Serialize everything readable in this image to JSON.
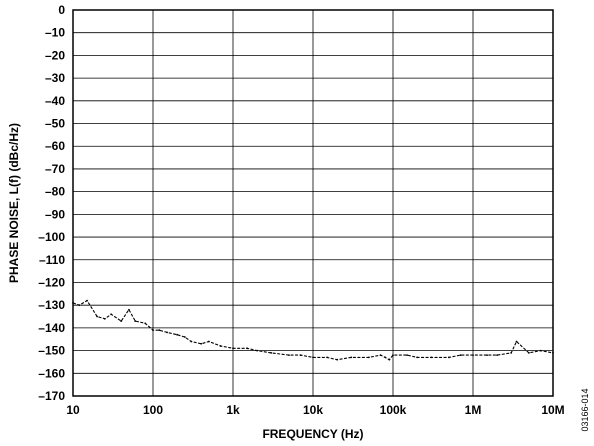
{
  "chart_data": {
    "type": "line",
    "xlabel": "FREQUENCY (Hz)",
    "ylabel": "PHASE NOISE, L(f) (dBc/Hz)",
    "xscale": "log",
    "xlim": [
      10,
      10000000
    ],
    "ylim": [
      -170,
      0
    ],
    "x_tick_labels": [
      "10",
      "100",
      "1k",
      "10k",
      "100k",
      "1M",
      "10M"
    ],
    "x_tick_values": [
      10,
      100,
      1000,
      10000,
      100000,
      1000000,
      10000000
    ],
    "y_tick_values": [
      0,
      -10,
      -20,
      -30,
      -40,
      -50,
      -60,
      -70,
      -80,
      -90,
      -100,
      -110,
      -120,
      -130,
      -140,
      -150,
      -160,
      -170
    ],
    "grid": true,
    "figure_id": "03166-014",
    "series": [
      {
        "x": [
          10,
          12,
          15,
          20,
          25,
          30,
          40,
          50,
          60,
          80,
          100,
          120,
          150,
          200,
          250,
          300,
          400,
          500,
          700,
          1000,
          1500,
          2000,
          3000,
          5000,
          7000,
          10000,
          15000,
          20000,
          30000,
          50000,
          70000,
          80000,
          90000,
          100000,
          150000,
          200000,
          300000,
          500000,
          700000,
          1000000,
          1500000,
          2000000,
          3000000,
          3500000,
          5000000,
          7000000,
          10000000
        ],
        "y": [
          -129,
          -130,
          -128,
          -135,
          -136,
          -134,
          -137,
          -132,
          -137,
          -138,
          -141,
          -141,
          -142,
          -143,
          -144,
          -146,
          -147,
          -146,
          -148,
          -149,
          -149,
          -150,
          -151,
          -152,
          -152,
          -153,
          -153,
          -154,
          -153,
          -153,
          -152,
          -153,
          -154,
          -152,
          -152,
          -153,
          -153,
          -153,
          -152,
          -152,
          -152,
          -152,
          -151,
          -146,
          -151,
          -150,
          -151
        ]
      }
    ]
  }
}
